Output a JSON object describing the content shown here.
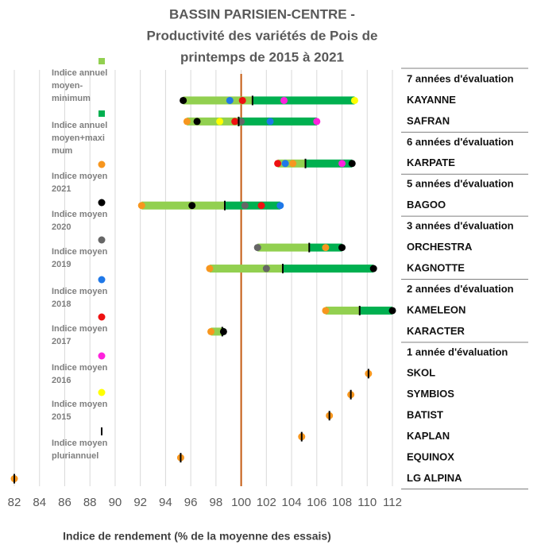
{
  "chart_data": {
    "type": "dot-range",
    "title": [
      "BASSIN PARISIEN-CENTRE -",
      "Productivité des variétés de Pois de",
      "printemps de 2015 à 2021"
    ],
    "x_label": "Indice de rendement (% de la moyenne des essais)",
    "xlim": [
      82,
      112
    ],
    "xticks": [
      82,
      84,
      86,
      88,
      90,
      92,
      94,
      96,
      98,
      100,
      102,
      104,
      106,
      108,
      110,
      112
    ],
    "grid": true,
    "reference_x": 100,
    "reference_color": "#c55a11",
    "groups": [
      {
        "label": "7 années d'évaluation",
        "categories": [
          "KAYANNE",
          "SAFRAN"
        ]
      },
      {
        "label": "6 années d'évaluation",
        "categories": [
          "KARPATE"
        ]
      },
      {
        "label": "5 années d'évaluation",
        "categories": [
          "BAGOO"
        ]
      },
      {
        "label": "3 années d'évaluation",
        "categories": [
          "ORCHESTRA",
          "KAGNOTTE"
        ]
      },
      {
        "label": "2 années d'évaluation",
        "categories": [
          "KAMELEON",
          "KARACTER"
        ]
      },
      {
        "label": "1 année d'évaluation",
        "categories": [
          "SKOL",
          "SYMBIOS",
          "BATIST",
          "KAPLAN",
          "EQUINOX",
          "LG ALPINA"
        ]
      }
    ],
    "series": [
      {
        "name": [
          "Indice annuel",
          "moyen-",
          "minimum"
        ],
        "marker": "square",
        "color": "#92d050",
        "values": [
          95.4,
          95.7,
          102.9,
          92.1,
          101.3,
          97.5,
          106.7,
          97.6,
          null,
          null,
          null,
          null,
          null,
          null
        ]
      },
      {
        "name": [
          "Indice annuel",
          "moyen+maxi",
          "mum"
        ],
        "marker": "square",
        "color": "#00b050",
        "values": [
          109.0,
          106.0,
          108.8,
          103.1,
          108.0,
          110.5,
          112.0,
          98.6,
          null,
          null,
          null,
          null,
          null,
          null
        ]
      },
      {
        "name": [
          "Indice moyen",
          "2021"
        ],
        "marker": "circle",
        "color": "#f7961e",
        "values": [
          null,
          95.7,
          104.1,
          92.1,
          106.7,
          97.5,
          106.7,
          97.6,
          110.1,
          108.7,
          107.0,
          104.8,
          95.2,
          82.0
        ]
      },
      {
        "name": [
          "Indice moyen",
          "2020"
        ],
        "marker": "circle",
        "color": "#000000",
        "values": [
          95.4,
          96.5,
          108.8,
          96.1,
          108.0,
          110.5,
          112.0,
          98.6,
          null,
          null,
          null,
          null,
          null,
          null
        ]
      },
      {
        "name": [
          "Indice moyen",
          "2019"
        ],
        "marker": "circle",
        "color": "#666666",
        "values": [
          null,
          100.0,
          null,
          100.3,
          101.3,
          102.0,
          null,
          null,
          null,
          null,
          null,
          null,
          null,
          null
        ]
      },
      {
        "name": [
          "Indice moyen",
          "2018"
        ],
        "marker": "circle",
        "color": "#1f78e8",
        "values": [
          99.1,
          102.3,
          103.5,
          103.1,
          null,
          null,
          null,
          null,
          null,
          null,
          null,
          null,
          null,
          null
        ]
      },
      {
        "name": [
          "Indice moyen",
          "2017"
        ],
        "marker": "circle",
        "color": "#ee1111",
        "values": [
          100.1,
          99.5,
          102.9,
          101.6,
          null,
          null,
          null,
          null,
          null,
          null,
          null,
          null,
          null,
          null
        ]
      },
      {
        "name": [
          "Indice moyen",
          "2016"
        ],
        "marker": "circle",
        "color": "#ff22dd",
        "values": [
          103.4,
          106.0,
          108.0,
          null,
          null,
          null,
          null,
          null,
          null,
          null,
          null,
          null,
          null,
          null
        ]
      },
      {
        "name": [
          "Indice moyen",
          "2015"
        ],
        "marker": "circle",
        "color": "#ffff00",
        "values": [
          109.0,
          98.3,
          null,
          null,
          null,
          null,
          null,
          null,
          null,
          null,
          null,
          null,
          null,
          null
        ]
      },
      {
        "name": [
          "Indice moyen",
          "pluriannuel"
        ],
        "marker": "tick",
        "color": "#000000",
        "values": [
          100.9,
          99.8,
          105.1,
          98.7,
          105.4,
          103.3,
          109.4,
          98.5,
          110.1,
          108.7,
          107.0,
          104.8,
          95.2,
          82.0
        ]
      }
    ]
  }
}
